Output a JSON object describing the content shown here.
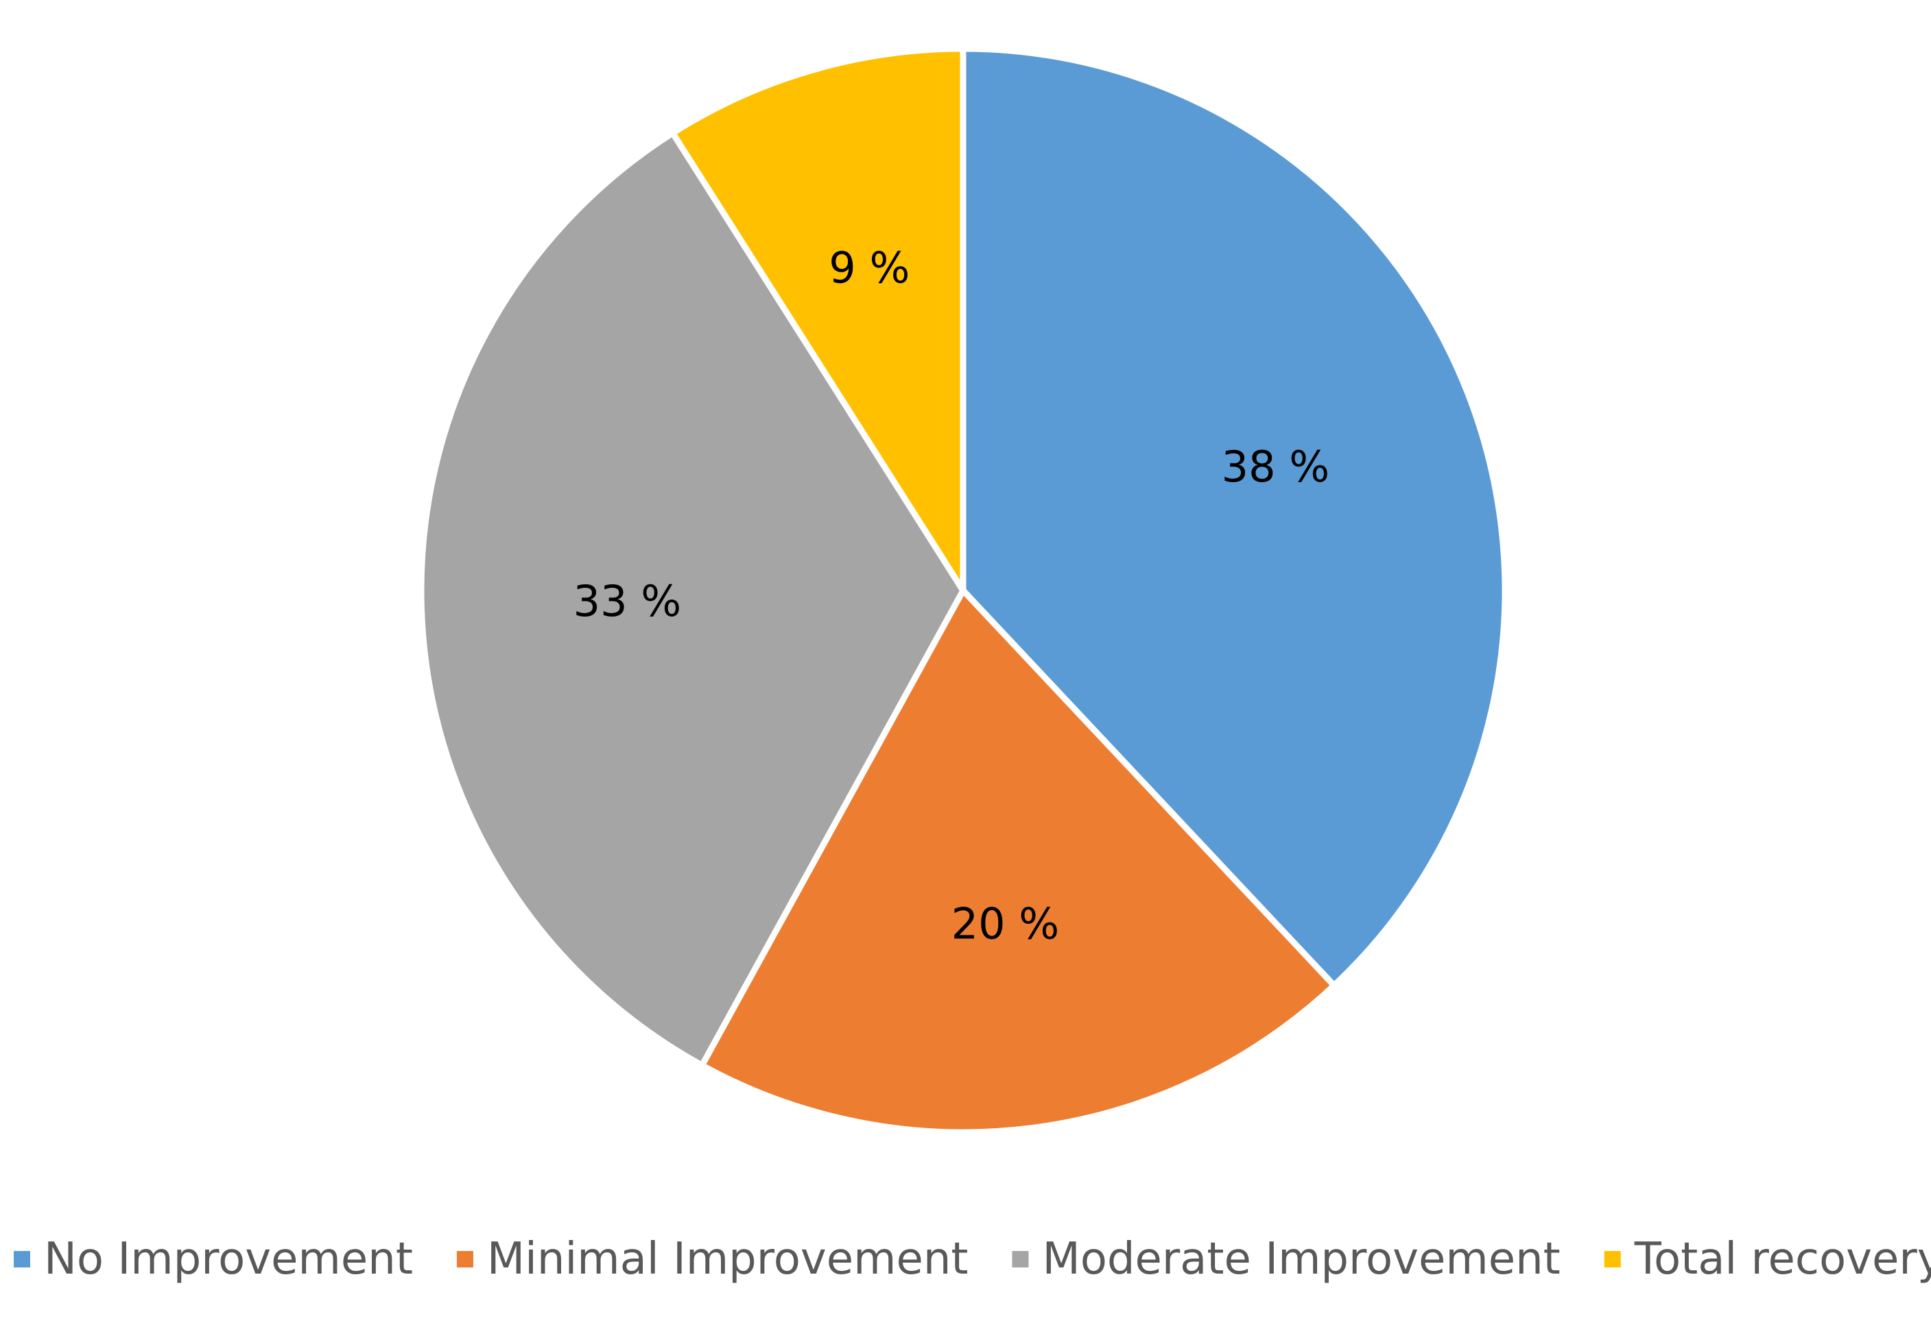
{
  "chart_data": {
    "type": "pie",
    "title": "",
    "categories": [
      "No Improvement",
      "Minimal Improvement",
      "Moderate Improvement",
      "Total recovery"
    ],
    "values": [
      38,
      20,
      33,
      9
    ],
    "data_labels": [
      "38 %",
      "20 %",
      "33 %",
      "9 %"
    ],
    "colors": [
      "#5B9BD5",
      "#ED7D31",
      "#A5A5A5",
      "#FFC000"
    ],
    "start_angle": "12 o'clock",
    "direction": "clockwise",
    "legend": {
      "placement": "bottom",
      "entries": [
        "No Improvement",
        "Minimal Improvement",
        "Moderate Improvement",
        "Total recovery"
      ]
    }
  }
}
